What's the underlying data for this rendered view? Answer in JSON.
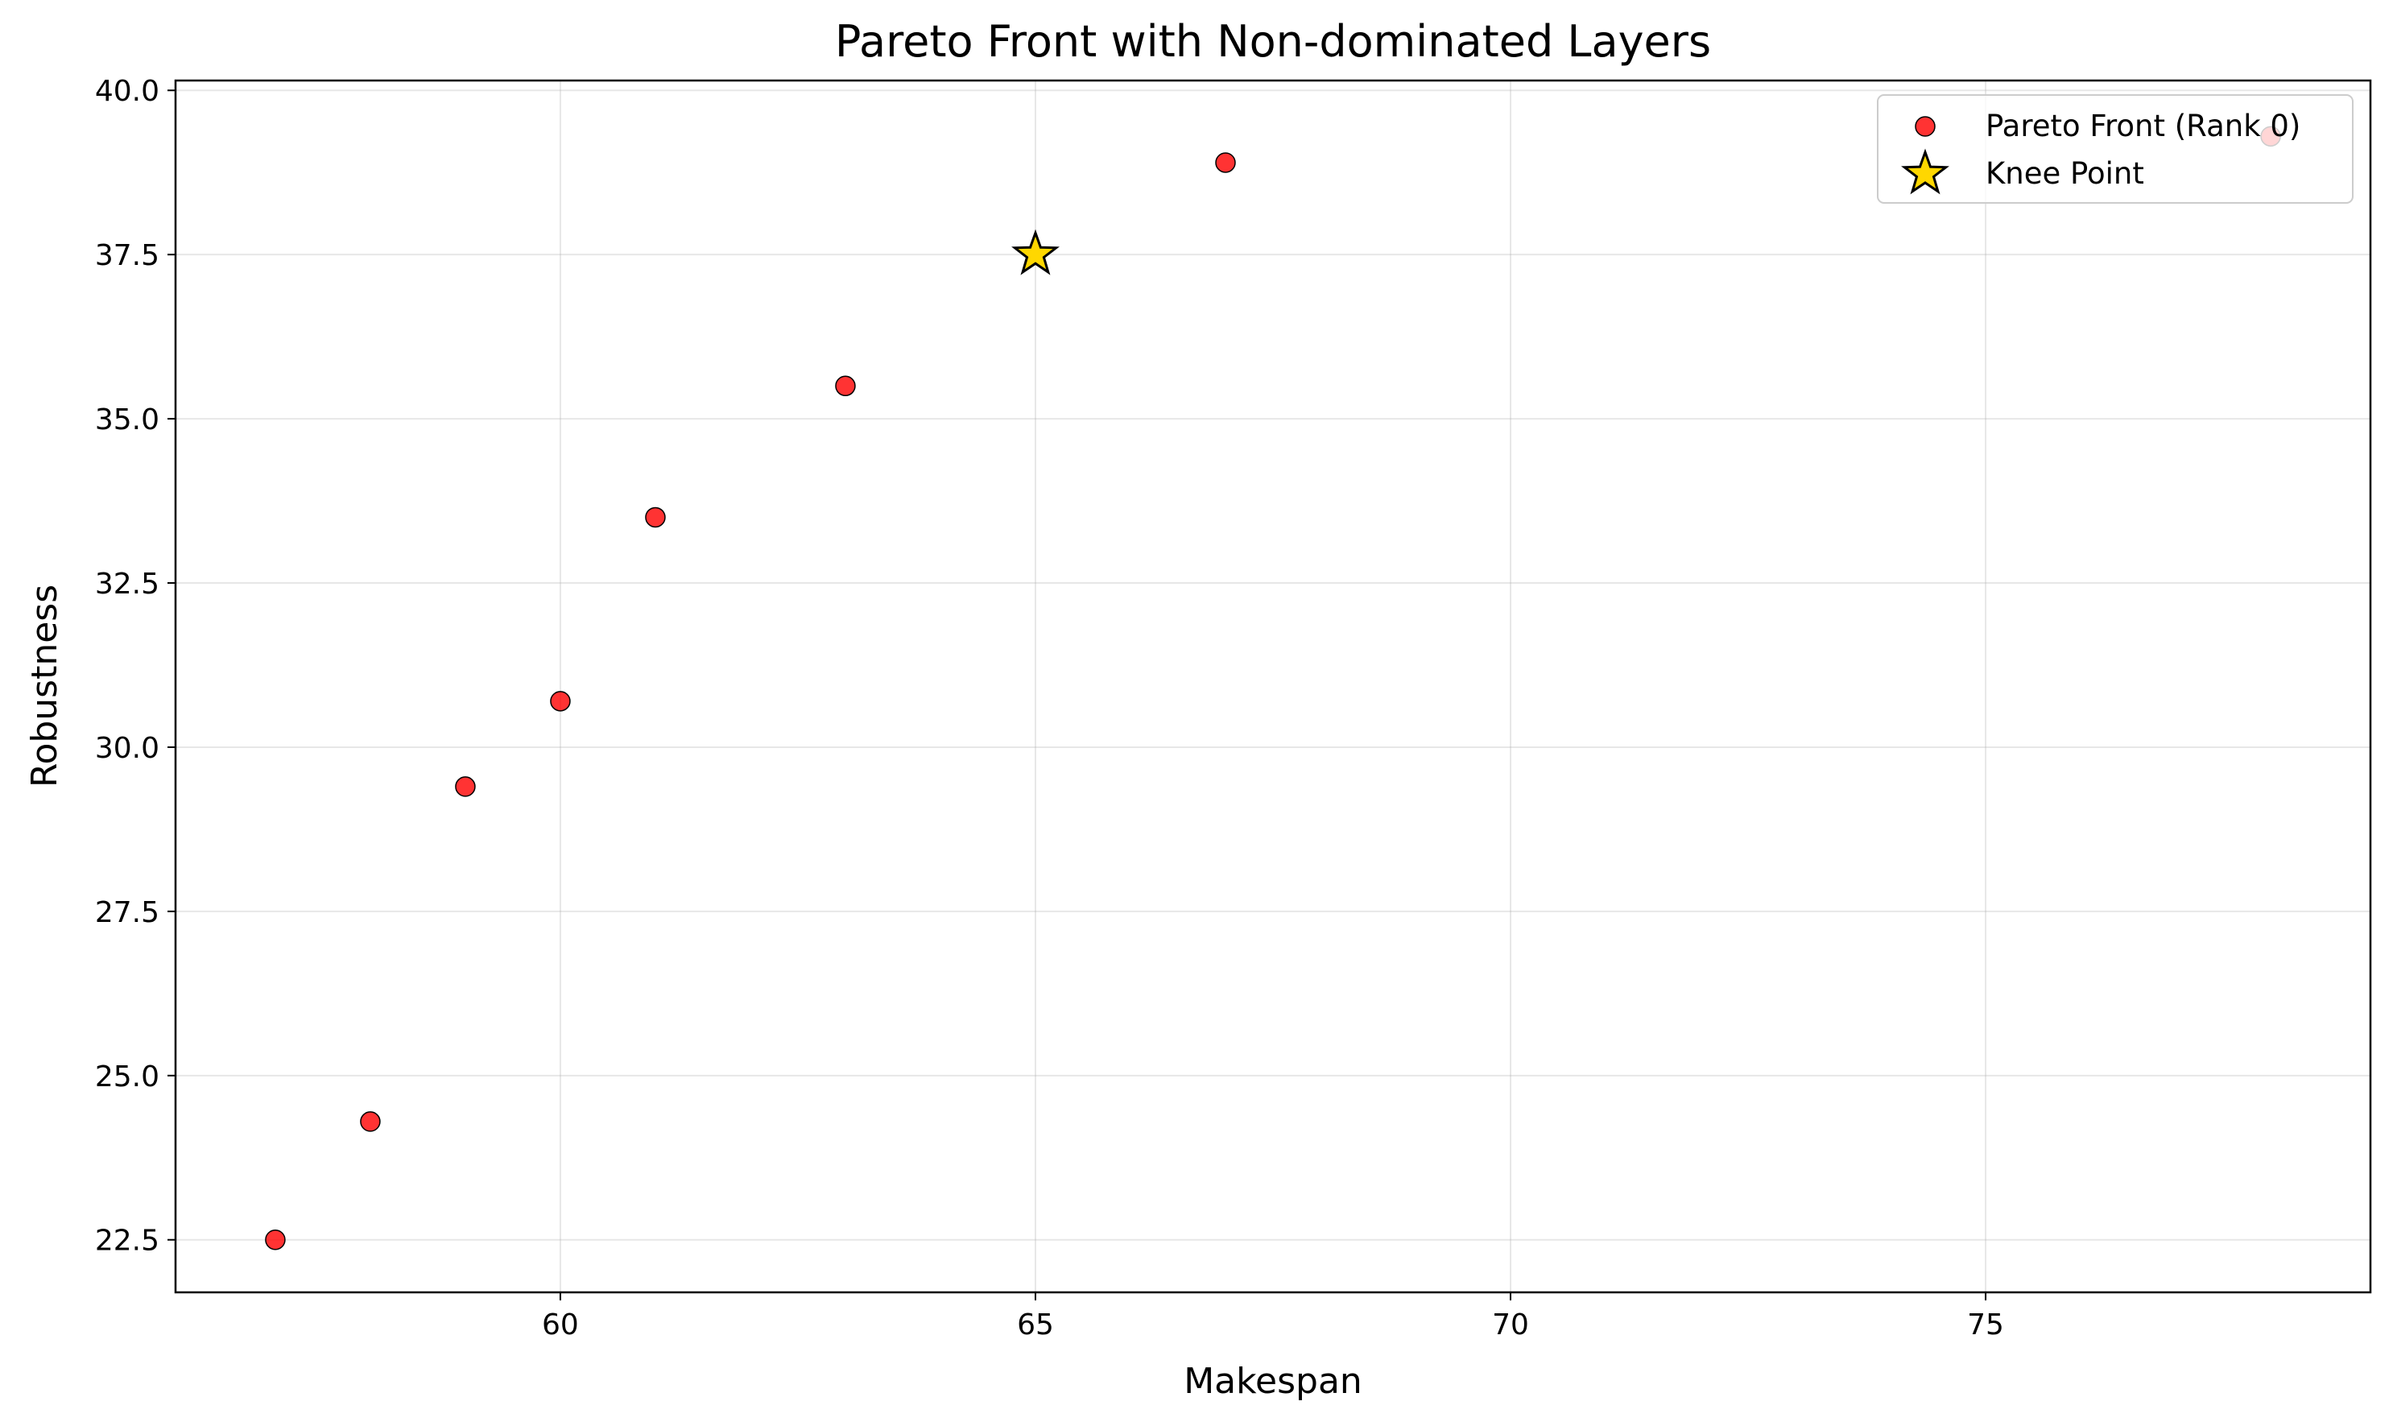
{
  "chart_data": {
    "type": "scatter",
    "title": "Pareto Front with Non-dominated Layers",
    "xlabel": "Makespan",
    "ylabel": "Robustness",
    "xlim": [
      55.95,
      79.05
    ],
    "ylim": [
      21.7,
      40.15
    ],
    "xticks": [
      60,
      65,
      70,
      75
    ],
    "yticks": [
      22.5,
      25.0,
      27.5,
      30.0,
      32.5,
      35.0,
      37.5,
      40.0
    ],
    "grid": true,
    "legend_position": "top-right",
    "series": [
      {
        "name": "Pareto Front (Rank 0)",
        "marker": "circle",
        "color": "#ff0000",
        "edge_color": "#000000",
        "points": [
          {
            "x": 57,
            "y": 22.5
          },
          {
            "x": 58,
            "y": 24.3
          },
          {
            "x": 59,
            "y": 29.4
          },
          {
            "x": 60,
            "y": 30.7
          },
          {
            "x": 61,
            "y": 33.5
          },
          {
            "x": 63,
            "y": 35.5
          },
          {
            "x": 67,
            "y": 38.9
          },
          {
            "x": 78,
            "y": 39.3
          }
        ]
      },
      {
        "name": "Knee Point",
        "marker": "star",
        "color": "#ffd700",
        "edge_color": "#000000",
        "points": [
          {
            "x": 65,
            "y": 37.5
          }
        ]
      }
    ]
  }
}
